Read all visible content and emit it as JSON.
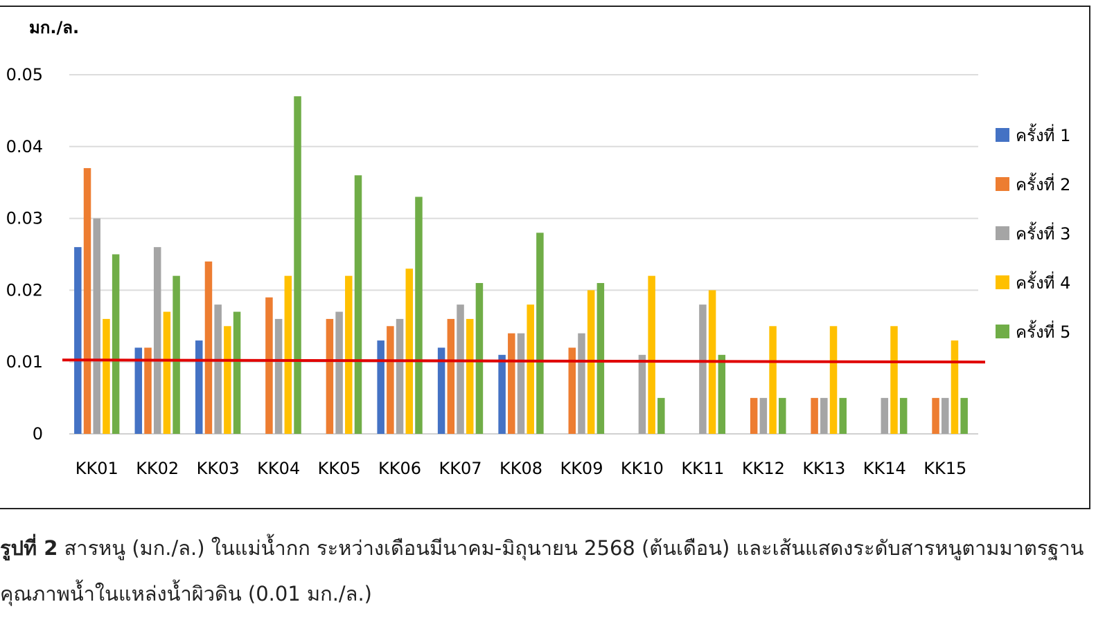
{
  "chart_data": {
    "type": "bar",
    "unit_label": "มก./ล.",
    "ylim": [
      0,
      0.05
    ],
    "yticks": [
      "0",
      "0.01",
      "0.02",
      "0.03",
      "0.04",
      "0.05"
    ],
    "ytick_values": [
      0,
      0.01,
      0.02,
      0.03,
      0.04,
      0.05
    ],
    "grid": true,
    "legend_position": "right",
    "categories": [
      "KK01",
      "KK02",
      "KK03",
      "KK04",
      "KK05",
      "KK06",
      "KK07",
      "KK08",
      "KK09",
      "KK10",
      "KK11",
      "KK12",
      "KK13",
      "KK14",
      "KK15"
    ],
    "series": [
      {
        "name": "ครั้งที่ 1",
        "color": "#4472C4",
        "values": [
          0.026,
          0.012,
          0.013,
          null,
          null,
          0.013,
          0.012,
          0.011,
          null,
          null,
          null,
          null,
          null,
          null,
          null
        ]
      },
      {
        "name": "ครั้งที่ 2",
        "color": "#ED7D31",
        "values": [
          0.037,
          0.012,
          0.024,
          0.019,
          0.016,
          0.015,
          0.016,
          0.014,
          0.012,
          null,
          null,
          0.005,
          0.005,
          null,
          0.005
        ]
      },
      {
        "name": "ครั้งที่ 3",
        "color": "#A5A5A5",
        "values": [
          0.03,
          0.026,
          0.018,
          0.016,
          0.017,
          0.016,
          0.018,
          0.014,
          0.014,
          0.011,
          0.018,
          0.005,
          0.005,
          0.005,
          0.005
        ]
      },
      {
        "name": "ครั้งที่ 4",
        "color": "#FFC000",
        "values": [
          0.016,
          0.017,
          0.015,
          0.022,
          0.022,
          0.023,
          0.016,
          0.018,
          0.02,
          0.022,
          0.02,
          0.015,
          0.015,
          0.015,
          0.013
        ]
      },
      {
        "name": "ครั้งที่ 5",
        "color": "#70AD47",
        "values": [
          0.025,
          0.022,
          0.017,
          0.047,
          0.036,
          0.033,
          0.021,
          0.028,
          0.021,
          0.005,
          0.011,
          0.005,
          0.005,
          0.005,
          0.005
        ]
      }
    ],
    "standard_line": {
      "value": 0.01,
      "color": "#E00000"
    }
  },
  "caption": {
    "label": "รูปที่ 2",
    "line1": "สารหนู (มก./ล.) ในแม่น้ำกก ระหว่างเดือนมีนาคม-มิถุนายน 2568 (ต้นเดือน) และเส้นแสดงระดับสารหนูตามมาตรฐาน",
    "line2": "คุณภาพน้ำในแหล่งน้ำผิวดิน (0.01 มก./ล.)"
  }
}
